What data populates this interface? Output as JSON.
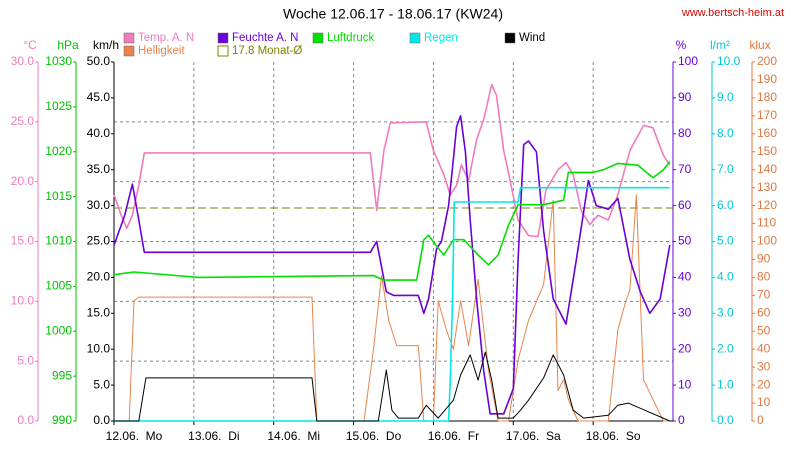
{
  "chart_data": {
    "type": "line",
    "title": "Woche 12.06.17 - 18.06.17 (KW24)",
    "source": "www.bertsch-heim.at",
    "xlim": [
      0,
      7
    ],
    "xticks": [
      {
        "value": 0,
        "label": "12.06.  Mo"
      },
      {
        "value": 1,
        "label": "13.06.  Di"
      },
      {
        "value": 2,
        "label": "14.06.  Mi"
      },
      {
        "value": 3,
        "label": "15.06.  Do"
      },
      {
        "value": 4,
        "label": "16.06.  Fr"
      },
      {
        "value": 5,
        "label": "17.06.  Sa"
      },
      {
        "value": 6,
        "label": "18.06.  So"
      }
    ],
    "grid": true,
    "axes": [
      {
        "unit": "°C",
        "side": "left",
        "color": "#f07cbc",
        "lim": [
          0,
          30
        ],
        "ticks": [
          {
            "value": 0,
            "label": "0.0"
          },
          {
            "value": 5,
            "label": "5.0"
          },
          {
            "value": 10,
            "label": "10.0"
          },
          {
            "value": 15,
            "label": "15.0"
          },
          {
            "value": 20,
            "label": "20.0"
          },
          {
            "value": 25,
            "label": "25.0"
          },
          {
            "value": 30,
            "label": "30.0"
          }
        ]
      },
      {
        "unit": "hPa",
        "side": "left",
        "color": "#00c000",
        "lim": [
          990,
          1030
        ],
        "ticks": [
          990,
          995,
          1000,
          1005,
          1010,
          1015,
          1020,
          1025,
          1030
        ]
      },
      {
        "unit": "km/h",
        "side": "left",
        "color": "#000000",
        "lim": [
          0,
          50
        ],
        "ticks": [
          {
            "value": 0,
            "label": "0.0"
          },
          {
            "value": 5,
            "label": "5.0"
          },
          {
            "value": 10,
            "label": "10.0"
          },
          {
            "value": 15,
            "label": "15.0"
          },
          {
            "value": 20,
            "label": "20.0"
          },
          {
            "value": 25,
            "label": "25.0"
          },
          {
            "value": 30,
            "label": "30.0"
          },
          {
            "value": 35,
            "label": "35.0"
          },
          {
            "value": 40,
            "label": "40.0"
          },
          {
            "value": 45,
            "label": "45.0"
          },
          {
            "value": 50,
            "label": "50.0"
          }
        ]
      },
      {
        "unit": "%",
        "side": "right",
        "color": "#6a00d8",
        "lim": [
          0,
          100
        ],
        "ticks": [
          0,
          10,
          20,
          30,
          40,
          50,
          60,
          70,
          80,
          90,
          100
        ]
      },
      {
        "unit": "l/m²",
        "side": "right",
        "color": "#00c8d8",
        "lim": [
          0,
          10
        ],
        "ticks": [
          {
            "value": 0,
            "label": "0.0"
          },
          {
            "value": 1,
            "label": "1.0"
          },
          {
            "value": 2,
            "label": "2.0"
          },
          {
            "value": 3,
            "label": "3.0"
          },
          {
            "value": 4,
            "label": "4.0"
          },
          {
            "value": 5,
            "label": "5.0"
          },
          {
            "value": 6,
            "label": "6.0"
          },
          {
            "value": 7,
            "label": "7.0"
          },
          {
            "value": 8,
            "label": "8.0"
          },
          {
            "value": 9,
            "label": "9.0"
          },
          {
            "value": 10,
            "label": "10.0"
          }
        ]
      },
      {
        "unit": "klux",
        "side": "right",
        "color": "#e07840",
        "lim": [
          0,
          200
        ],
        "ticks": [
          0,
          10,
          20,
          30,
          40,
          50,
          60,
          70,
          80,
          90,
          100,
          110,
          120,
          130,
          140,
          150,
          160,
          170,
          180,
          190,
          200
        ]
      }
    ],
    "series": [
      {
        "name": "Temp. A. N",
        "color": "#f07cbc",
        "axis": "°C",
        "x": [
          0,
          0.09,
          0.16,
          0.23,
          0.31,
          0.38,
          3.21,
          3.29,
          3.38,
          3.46,
          3.91,
          4,
          4.13,
          4.21,
          4.29,
          4.35,
          4.44,
          4.54,
          4.63,
          4.73,
          4.79,
          4.88,
          4.96,
          5.06,
          5.19,
          5.31,
          5.41,
          5.56,
          5.66,
          5.75,
          5.85,
          5.96,
          6.06,
          6.19,
          6.31,
          6.46,
          6.63,
          6.75,
          6.88,
          6.96
        ],
        "values": [
          18.9,
          17.2,
          16.1,
          17.2,
          19.7,
          22.4,
          22.4,
          17.6,
          22.6,
          24.9,
          25.0,
          22.6,
          20.6,
          18.9,
          19.7,
          21.4,
          20.1,
          23.5,
          25.2,
          28.1,
          27.2,
          22.6,
          20.1,
          16.8,
          15.5,
          15.4,
          19.3,
          21.0,
          21.6,
          20.6,
          17.6,
          16.4,
          17.2,
          16.8,
          18.9,
          22.6,
          24.7,
          24.5,
          22.2,
          21.4
        ]
      },
      {
        "name": "Helligkeit",
        "color": "#e8844a",
        "axis": "klux",
        "x": [
          0,
          0.19,
          0.25,
          0.31,
          2.48,
          2.54,
          3.13,
          3.25,
          3.35,
          3.44,
          3.54,
          3.81,
          3.88,
          4,
          4.06,
          4.16,
          4.25,
          4.34,
          4.44,
          4.56,
          4.69,
          4.81,
          4.94,
          5.06,
          5.19,
          5.38,
          5.5,
          5.56,
          5.63,
          5.69,
          5.81,
          6.19,
          6.31,
          6.41,
          6.46,
          6.54,
          6.63,
          6.75,
          6.88,
          6.96
        ],
        "values": [
          0,
          0,
          67,
          69,
          69,
          0,
          0,
          40,
          81,
          56,
          42,
          42,
          0,
          0,
          67,
          51,
          40,
          67,
          42,
          79,
          28,
          0,
          0,
          34,
          56,
          76,
          123,
          17,
          23,
          12,
          0,
          0,
          51,
          67,
          73,
          126,
          23,
          12,
          0,
          0
        ]
      },
      {
        "name": "Feuchte A. N",
        "color": "#6a00d8",
        "axis": "%",
        "x": [
          0,
          0.13,
          0.23,
          0.31,
          0.38,
          3.21,
          3.29,
          3.41,
          3.5,
          3.81,
          3.88,
          3.94,
          4.04,
          4.1,
          4.19,
          4.25,
          4.29,
          4.34,
          4.4,
          4.46,
          4.54,
          4.63,
          4.71,
          4.88,
          5,
          5.06,
          5.13,
          5.19,
          5.29,
          5.38,
          5.5,
          5.66,
          5.79,
          5.94,
          6.04,
          6.19,
          6.31,
          6.46,
          6.59,
          6.71,
          6.84,
          6.96
        ],
        "values": [
          49,
          57,
          66,
          56,
          47,
          47,
          50,
          36,
          35,
          35,
          30,
          34,
          48,
          50,
          60,
          73,
          82,
          85,
          75,
          56,
          34,
          14,
          2,
          2,
          9,
          45,
          77,
          78,
          75,
          53,
          34,
          27,
          45,
          67,
          60,
          59,
          62,
          45,
          36,
          30,
          34,
          49
        ]
      },
      {
        "name": "Luftdruck",
        "color": "#00e000",
        "axis": "hPa",
        "x": [
          0,
          0.25,
          1.06,
          3.25,
          3.38,
          3.79,
          3.88,
          3.94,
          4.03,
          4.13,
          4.25,
          4.38,
          4.56,
          4.69,
          4.81,
          4.94,
          5.06,
          5.38,
          5.63,
          5.69,
          6,
          6.13,
          6.31,
          6.56,
          6.75,
          6.88,
          6.96
        ],
        "values": [
          1006.3,
          1006.6,
          1006.0,
          1006.2,
          1005.7,
          1005.7,
          1010.2,
          1010.7,
          1009.6,
          1008.5,
          1010.2,
          1010.2,
          1008.5,
          1007.4,
          1008.5,
          1011.8,
          1014.1,
          1014.1,
          1014.6,
          1017.7,
          1017.7,
          1018.0,
          1018.7,
          1018.5,
          1017.1,
          1018.0,
          1018.9
        ]
      },
      {
        "name": "Regen",
        "color": "#00e8e8",
        "axis": "l/m²",
        "x": [
          0,
          4.19,
          4.21,
          4.24,
          4.26,
          5.06,
          5.09,
          6.96
        ],
        "values": [
          0,
          0,
          1.1,
          3.4,
          6.1,
          6.1,
          6.5,
          6.5
        ]
      },
      {
        "name": "Wind",
        "color": "#000000",
        "axis": "km/h",
        "x": [
          0,
          0.31,
          0.4,
          2.48,
          2.54,
          3.31,
          3.41,
          3.48,
          3.56,
          3.81,
          3.91,
          4.06,
          4.25,
          4.34,
          4.46,
          4.56,
          4.65,
          4.73,
          4.81,
          5,
          5.09,
          5.19,
          5.38,
          5.5,
          5.63,
          5.75,
          5.88,
          6.19,
          6.31,
          6.44,
          6.69,
          6.96
        ],
        "values": [
          0,
          0,
          6.0,
          6.0,
          0,
          0,
          7.1,
          1.5,
          0.4,
          0.4,
          2.2,
          0.4,
          2.9,
          6.4,
          9.2,
          5.7,
          9.6,
          5.7,
          0.4,
          0.4,
          1.5,
          2.9,
          6.0,
          9.2,
          6.4,
          1.5,
          0.4,
          0.8,
          2.2,
          2.5,
          1.3,
          0
        ]
      }
    ],
    "reference_line": {
      "name": "17.8 Monat-Ø",
      "value": 17.8,
      "axis": "°C",
      "color": "#808000"
    }
  }
}
